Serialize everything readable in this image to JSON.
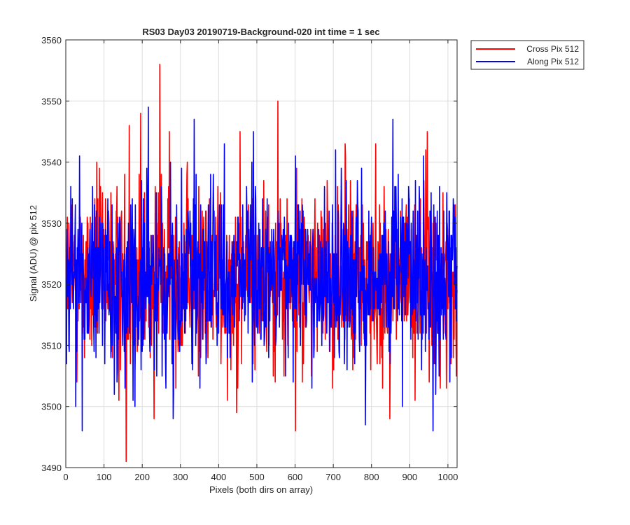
{
  "chart_data": {
    "type": "line",
    "title": "RS03 Day03 20190719-Background-020 int time = 1 sec",
    "xlabel": "Pixels (both dirs on array)",
    "ylabel": "Signal (ADU) @ pix 512",
    "xlim": [
      0,
      1024
    ],
    "ylim": [
      3490,
      3560
    ],
    "xticks": [
      "0",
      "100",
      "200",
      "300",
      "400",
      "500",
      "600",
      "700",
      "800",
      "900",
      "1000"
    ],
    "yticks": [
      "3490",
      "3500",
      "3510",
      "3520",
      "3530",
      "3540",
      "3550",
      "3560"
    ],
    "grid": true,
    "legend_position": "outside-top-right",
    "mean": 3521,
    "n_points": 1024,
    "series": [
      {
        "name": "Cross Pix 512",
        "color": "#ff0000",
        "notable_points": [
          [
            157,
            3491
          ],
          [
            245,
            3556
          ],
          [
            554,
            3550
          ],
          [
            600,
            3496
          ],
          [
            165,
            3546
          ],
          [
            80,
            3540
          ],
          [
            195,
            3548
          ],
          [
            270,
            3545
          ],
          [
            230,
            3498
          ],
          [
            455,
            3545
          ],
          [
            730,
            3543
          ],
          [
            945,
            3545
          ]
        ]
      },
      {
        "name": "Along Pix 512",
        "color": "#0000ff",
        "notable_points": [
          [
            215,
            3549
          ],
          [
            855,
            3547
          ],
          [
            960,
            3496
          ],
          [
            783,
            3497
          ],
          [
            25,
            3500
          ],
          [
            335,
            3547
          ],
          [
            600,
            3541
          ],
          [
            490,
            3545
          ],
          [
            180,
            3500
          ],
          [
            880,
            3500
          ]
        ]
      }
    ]
  }
}
